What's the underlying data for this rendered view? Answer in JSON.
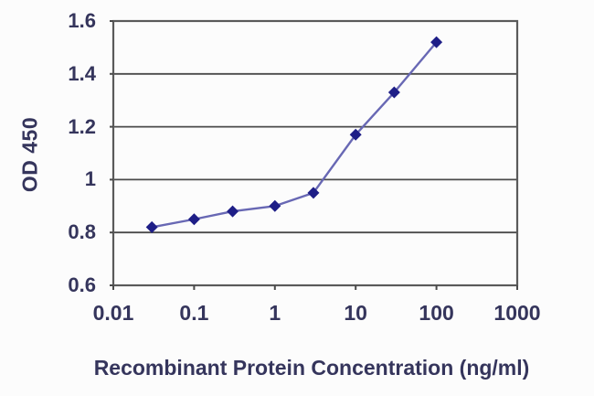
{
  "figure": {
    "background": "#fcfcfc"
  },
  "chart_data": {
    "type": "line",
    "title": "",
    "xlabel": "Recombinant Protein Concentration (ng/ml)",
    "ylabel": "OD 450",
    "x_scale": "log",
    "xlim": [
      0.01,
      1000
    ],
    "ylim": [
      0.6,
      1.6
    ],
    "x_ticks": [
      0.01,
      0.1,
      1,
      10,
      100,
      1000
    ],
    "x_tick_labels": [
      "0.01",
      "0.1",
      "1",
      "10",
      "100",
      "1000"
    ],
    "y_ticks": [
      0.6,
      0.8,
      1,
      1.2,
      1.4,
      1.6
    ],
    "y_tick_labels": [
      "0.6",
      "0.8",
      "1",
      "1.2",
      "1.4",
      "1.6"
    ],
    "grid": true,
    "legend": false,
    "series": [
      {
        "name": "OD 450",
        "marker": "diamond",
        "x": [
          0.03,
          0.1,
          0.3,
          1,
          3,
          10,
          30,
          100
        ],
        "y": [
          0.82,
          0.85,
          0.88,
          0.9,
          0.95,
          1.17,
          1.33,
          1.52
        ]
      }
    ],
    "colors": {
      "line": "#6868b4",
      "marker": "#1e1e87",
      "grid": "#4a4a4a",
      "border": "#5a5a5a",
      "text": "#35355c",
      "background": "#fcfcfc"
    }
  }
}
